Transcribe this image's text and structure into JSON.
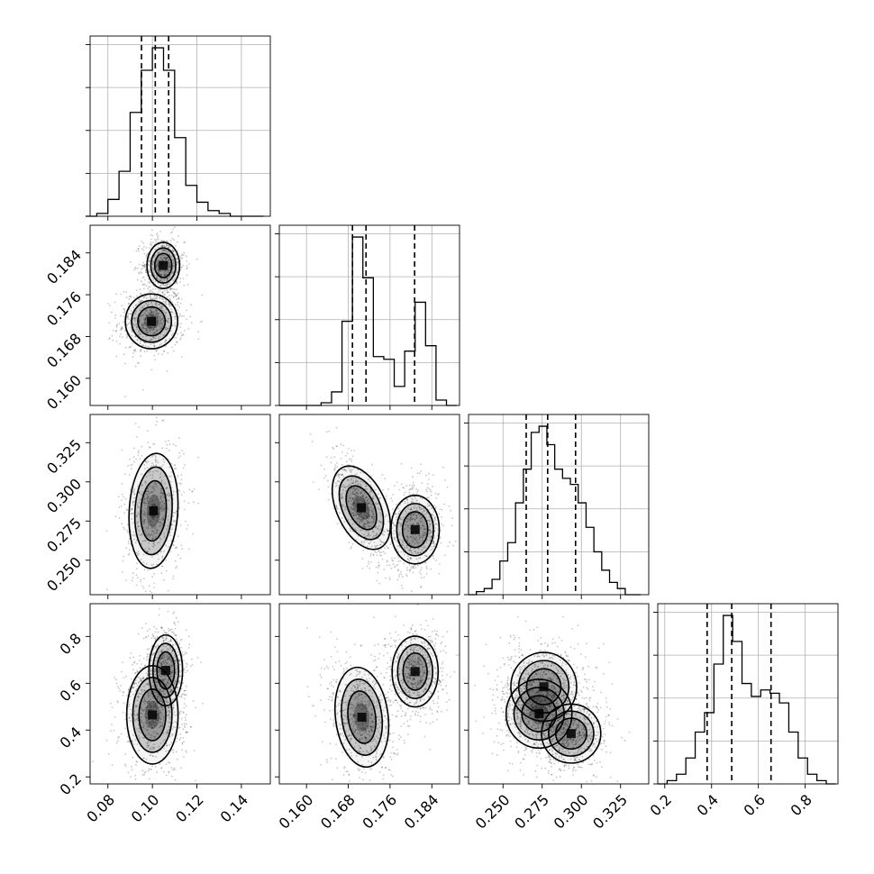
{
  "chart_data": {
    "type": "corner",
    "parameters": [
      {
        "ticks": [
          0.08,
          0.1,
          0.12,
          0.14
        ],
        "tick_labels": [
          "0.08",
          "0.10",
          "0.12",
          "0.14"
        ],
        "range": [
          0.072,
          0.153
        ],
        "quantiles": [
          0.0951,
          0.1013,
          0.1073
        ],
        "hist_bins": [
          0.07,
          0.075,
          0.08,
          0.085,
          0.09,
          0.095,
          0.1,
          0.105,
          0.11,
          0.115,
          0.12,
          0.125,
          0.13,
          0.135,
          0.14,
          0.145,
          0.15
        ],
        "hist_values": [
          0,
          1,
          6,
          16,
          37,
          52,
          60,
          52,
          28,
          11,
          5,
          2,
          1,
          0,
          0,
          0
        ]
      },
      {
        "ticks": [
          0.16,
          0.168,
          0.176,
          0.184
        ],
        "tick_labels": [
          "0.160",
          "0.168",
          "0.176",
          "0.184"
        ],
        "range": [
          0.1548,
          0.1893
        ],
        "quantiles": [
          0.1688,
          0.1714,
          0.1807
        ],
        "hist_bins": [
          0.1548,
          0.1568,
          0.1588,
          0.1608,
          0.1628,
          0.1648,
          0.1668,
          0.1688,
          0.1708,
          0.1728,
          0.1748,
          0.1768,
          0.1788,
          0.1808,
          0.1828,
          0.1848,
          0.1868,
          0.1888
        ],
        "hist_values": [
          0,
          0,
          0,
          0,
          1,
          5,
          31,
          62,
          47,
          18,
          17,
          7,
          20,
          38,
          22,
          2,
          0
        ]
      },
      {
        "ticks": [
          0.25,
          0.275,
          0.3,
          0.325
        ],
        "tick_labels": [
          "0.250",
          "0.275",
          "0.300",
          "0.325"
        ],
        "range": [
          0.228,
          0.343
        ],
        "quantiles": [
          0.2648,
          0.2785,
          0.2963
        ],
        "hist_bins": [
          0.228,
          0.233,
          0.238,
          0.243,
          0.248,
          0.253,
          0.258,
          0.263,
          0.268,
          0.273,
          0.278,
          0.283,
          0.288,
          0.293,
          0.298,
          0.303,
          0.308,
          0.313,
          0.318,
          0.323,
          0.328,
          0.333,
          0.338
        ],
        "hist_values": [
          0,
          1,
          2,
          5,
          11,
          17,
          30,
          41,
          53,
          55,
          49,
          41,
          38,
          36,
          30,
          22,
          14,
          8,
          4,
          2,
          0,
          0
        ]
      },
      {
        "ticks": [
          0.2,
          0.4,
          0.6,
          0.8
        ],
        "tick_labels": [
          "0.2",
          "0.4",
          "0.6",
          "0.8"
        ],
        "range": [
          0.17,
          0.94
        ],
        "quantiles": [
          0.381,
          0.486,
          0.654
        ],
        "hist_bins": [
          0.17,
          0.21,
          0.25,
          0.29,
          0.33,
          0.37,
          0.41,
          0.45,
          0.49,
          0.53,
          0.57,
          0.61,
          0.65,
          0.69,
          0.73,
          0.77,
          0.81,
          0.85,
          0.89,
          0.93
        ],
        "hist_values": [
          0,
          1,
          3,
          8,
          16,
          22,
          37,
          52,
          44,
          31,
          27,
          29,
          28,
          25,
          16,
          8,
          3,
          1,
          0
        ]
      }
    ],
    "pairs": [
      {
        "row": 1,
        "col": 0,
        "blobs": [
          {
            "cx": 0.0996,
            "cy": 0.1709,
            "sx": 0.0056,
            "sy": 0.0025,
            "rho": 0.05,
            "levels": 4
          },
          {
            "cx": 0.1049,
            "cy": 0.1816,
            "sx": 0.0035,
            "sy": 0.0021,
            "rho": 0.0,
            "levels": 3
          }
        ]
      },
      {
        "row": 2,
        "col": 0,
        "blobs": [
          {
            "cx": 0.1005,
            "cy": 0.2815,
            "sx": 0.0052,
            "sy": 0.0175,
            "rho": 0.1,
            "levels": 5
          }
        ]
      },
      {
        "row": 2,
        "col": 1,
        "blobs": [
          {
            "cx": 0.1705,
            "cy": 0.2835,
            "sx": 0.00225,
            "sy": 0.0135,
            "rho": -0.7,
            "levels": 4
          },
          {
            "cx": 0.1808,
            "cy": 0.2695,
            "sx": 0.0022,
            "sy": 0.0104,
            "rho": 0.0,
            "levels": 3
          }
        ]
      },
      {
        "row": 3,
        "col": 0,
        "blobs": [
          {
            "cx": 0.1,
            "cy": 0.465,
            "sx": 0.0055,
            "sy": 0.1,
            "rho": 0.0,
            "levels": 4
          },
          {
            "cx": 0.106,
            "cy": 0.655,
            "sx": 0.0036,
            "sy": 0.072,
            "rho": 0.0,
            "levels": 3
          }
        ]
      },
      {
        "row": 3,
        "col": 1,
        "blobs": [
          {
            "cx": 0.1706,
            "cy": 0.455,
            "sx": 0.0024,
            "sy": 0.102,
            "rho": -0.2,
            "levels": 4
          },
          {
            "cx": 0.1808,
            "cy": 0.65,
            "sx": 0.0021,
            "sy": 0.072,
            "rho": 0.0,
            "levels": 3
          }
        ]
      },
      {
        "row": 3,
        "col": 2,
        "blobs": [
          {
            "cx": 0.273,
            "cy": 0.47,
            "sx": 0.01,
            "sy": 0.07,
            "rho": 0.0,
            "levels": 4
          },
          {
            "cx": 0.276,
            "cy": 0.585,
            "sx": 0.01,
            "sy": 0.07,
            "rho": 0.0,
            "levels": 3
          },
          {
            "cx": 0.2935,
            "cy": 0.385,
            "sx": 0.009,
            "sy": 0.06,
            "rho": 0.0,
            "levels": 3
          }
        ]
      }
    ],
    "grid": true,
    "histogram_style": "step",
    "quantile_line_style": "dashed",
    "scatter_color": "#000000",
    "contour_color": "#000000",
    "fill_color": "#000000"
  }
}
